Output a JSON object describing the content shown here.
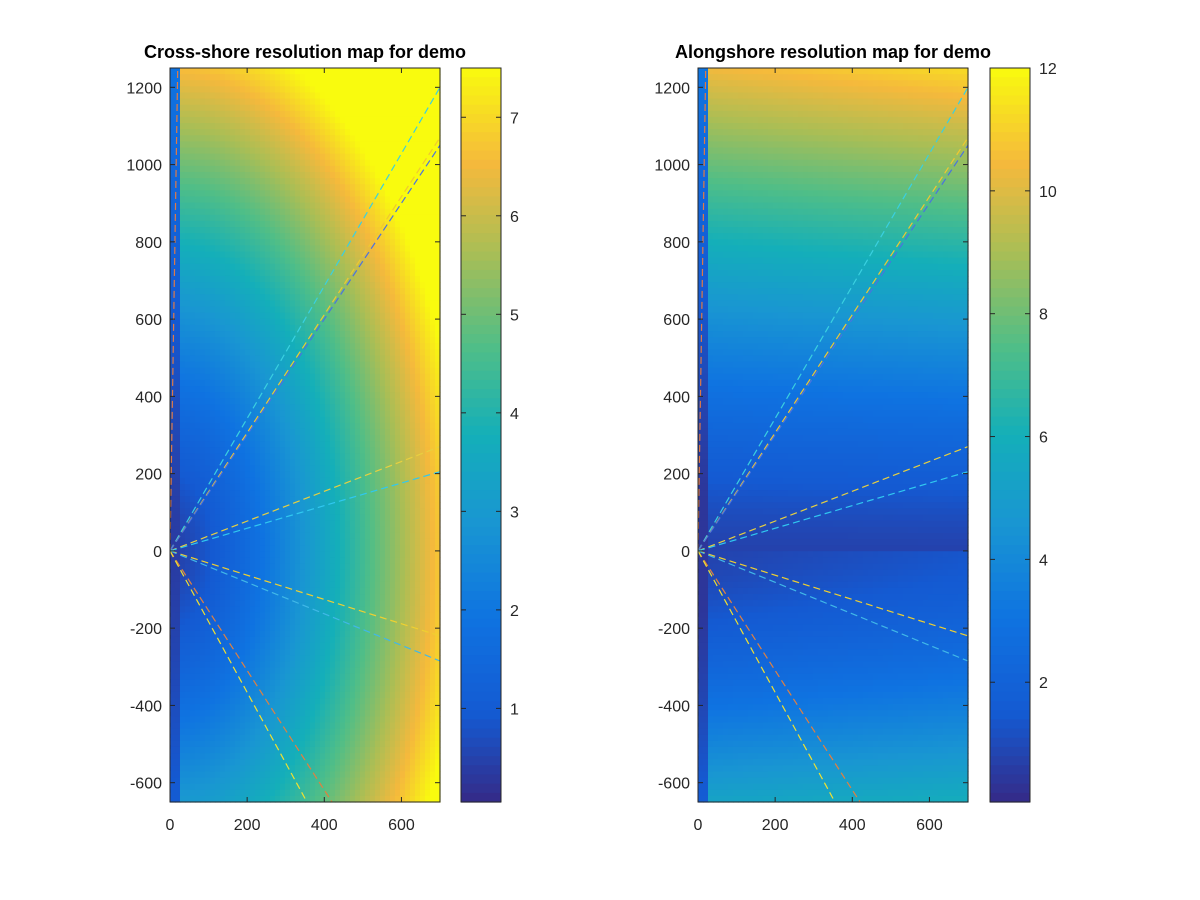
{
  "chart_data": [
    {
      "type": "heatmap",
      "title": "Cross-shore resolution map for demo",
      "xlabel": "",
      "ylabel": "",
      "xlim": [
        0,
        700
      ],
      "ylim": [
        -650,
        1250
      ],
      "xticks": [
        0,
        200,
        400,
        600
      ],
      "yticks": [
        -600,
        -400,
        -200,
        0,
        200,
        400,
        600,
        800,
        1000,
        1200
      ],
      "colorbar": {
        "clim": [
          0.05,
          7.5
        ],
        "ticks": [
          1,
          2,
          3,
          4,
          5,
          6,
          7
        ],
        "colormap": "parula"
      },
      "field_description": "Cross-shore resolution (values increase with distance from origin, highest at far offshore corners)",
      "camera_origin": [
        0,
        0
      ],
      "view_lines": [
        {
          "end": [
            20,
            1250
          ],
          "color": "#e07a45"
        },
        {
          "end": [
            700,
            1200
          ],
          "color": "#3ad0e0"
        },
        {
          "end": [
            700,
            1070
          ],
          "color": "#f0c830"
        },
        {
          "end": [
            700,
            1050
          ],
          "color": "#4a72e0"
        },
        {
          "end": [
            700,
            270
          ],
          "color": "#e8d040"
        },
        {
          "end": [
            700,
            205
          ],
          "color": "#30c8f0"
        },
        {
          "end": [
            700,
            -220
          ],
          "color": "#f0d030"
        },
        {
          "end": [
            700,
            -285
          ],
          "color": "#40b8e8"
        },
        {
          "end": [
            420,
            -650
          ],
          "color": "#e08040"
        },
        {
          "end": [
            355,
            -650
          ],
          "color": "#f0e030"
        },
        {
          "end": [
            0,
            -650
          ],
          "color": "#4070e0"
        }
      ]
    },
    {
      "type": "heatmap",
      "title": "Alongshore resolution map for demo",
      "xlabel": "",
      "ylabel": "",
      "xlim": [
        0,
        700
      ],
      "ylim": [
        -650,
        1250
      ],
      "xticks": [
        0,
        200,
        400,
        600
      ],
      "yticks": [
        -600,
        -400,
        -200,
        0,
        200,
        400,
        600,
        800,
        1000,
        1200
      ],
      "colorbar": {
        "clim": [
          0.05,
          12
        ],
        "ticks": [
          2,
          4,
          6,
          8,
          10,
          12
        ],
        "colormap": "parula"
      },
      "field_description": "Alongshore resolution (lowest near alongshore position 0, increasing toward top and bottom)",
      "camera_origin": [
        0,
        0
      ],
      "view_lines": [
        {
          "end": [
            20,
            1250
          ],
          "color": "#e07a45"
        },
        {
          "end": [
            700,
            1200
          ],
          "color": "#3ad0e0"
        },
        {
          "end": [
            700,
            1070
          ],
          "color": "#f0c830"
        },
        {
          "end": [
            700,
            1050
          ],
          "color": "#4a72e0"
        },
        {
          "end": [
            700,
            270
          ],
          "color": "#e8d040"
        },
        {
          "end": [
            700,
            205
          ],
          "color": "#30c8f0"
        },
        {
          "end": [
            700,
            -220
          ],
          "color": "#f0d030"
        },
        {
          "end": [
            700,
            -285
          ],
          "color": "#40b8e8"
        },
        {
          "end": [
            420,
            -650
          ],
          "color": "#e08040"
        },
        {
          "end": [
            355,
            -650
          ],
          "color": "#f0e030"
        },
        {
          "end": [
            0,
            -650
          ],
          "color": "#4070e0"
        }
      ]
    }
  ]
}
